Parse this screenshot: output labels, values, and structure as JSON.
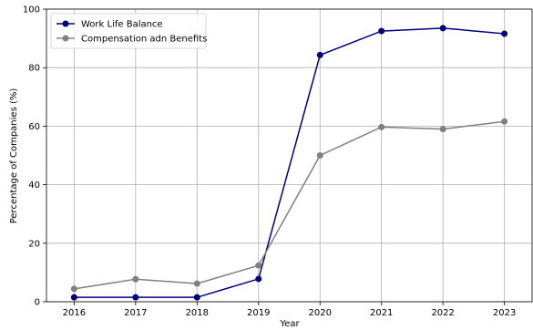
{
  "chart_data": {
    "type": "line",
    "title": "",
    "xlabel": "Year",
    "ylabel": "Percentage of Companies (%)",
    "x": [
      2016,
      2017,
      2018,
      2019,
      2020,
      2021,
      2022,
      2023
    ],
    "ylim": [
      0,
      100
    ],
    "yticks": [
      0,
      20,
      40,
      60,
      80,
      100
    ],
    "grid": true,
    "legend_position": "top-left",
    "series": [
      {
        "name": "Work Life Balance",
        "color": "#000080",
        "values": [
          1.5,
          1.5,
          1.5,
          7.8,
          84.3,
          92.5,
          93.5,
          91.6
        ]
      },
      {
        "name": "Compensation adn Benefits",
        "color": "#808080",
        "values": [
          4.4,
          7.7,
          6.2,
          12.4,
          50.0,
          59.7,
          59.0,
          61.6
        ]
      }
    ]
  }
}
